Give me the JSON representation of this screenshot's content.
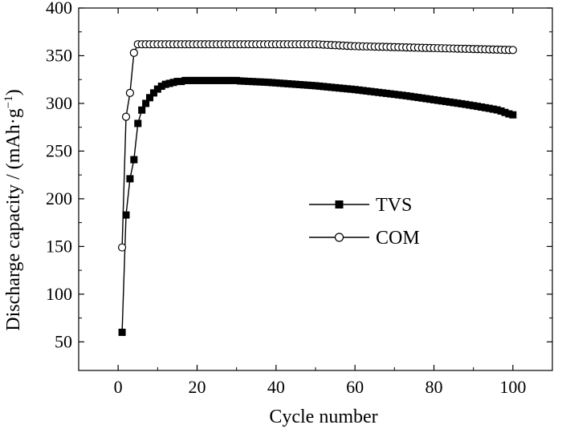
{
  "chart_data": {
    "type": "line",
    "xlabel": "Cycle number",
    "ylabel": {
      "main": "Discharge capacity / (mAh·g",
      "sup": "−1",
      "close": ")"
    },
    "xlim": [
      -10,
      110
    ],
    "ylim": [
      20,
      400
    ],
    "x_ticks": [
      0,
      20,
      40,
      60,
      80,
      100
    ],
    "y_ticks": [
      50,
      100,
      150,
      200,
      250,
      300,
      350,
      400
    ],
    "grid": false,
    "legend_position": "center-right",
    "series": [
      {
        "name": "TVS",
        "marker": "filled-square",
        "color": "#000000",
        "x": [
          1,
          2,
          3,
          4,
          5,
          6,
          7,
          8,
          9,
          10,
          11,
          12,
          13,
          14,
          15,
          16,
          17,
          18,
          19,
          20,
          21,
          22,
          23,
          24,
          25,
          26,
          27,
          28,
          29,
          30,
          31,
          32,
          33,
          34,
          35,
          36,
          37,
          38,
          39,
          40,
          41,
          42,
          43,
          44,
          45,
          46,
          47,
          48,
          49,
          50,
          51,
          52,
          53,
          54,
          55,
          56,
          57,
          58,
          59,
          60,
          61,
          62,
          63,
          64,
          65,
          66,
          67,
          68,
          69,
          70,
          71,
          72,
          73,
          74,
          75,
          76,
          77,
          78,
          79,
          80,
          81,
          82,
          83,
          84,
          85,
          86,
          87,
          88,
          89,
          90,
          91,
          92,
          93,
          94,
          95,
          96,
          97,
          98,
          99,
          100
        ],
        "y": [
          60,
          183,
          221,
          241,
          279,
          293,
          300,
          306,
          311,
          315,
          318,
          320,
          321,
          322,
          323,
          323,
          324,
          324,
          324,
          324,
          324,
          324,
          324,
          324,
          324,
          324,
          324,
          324,
          324,
          324,
          323.5,
          323.3,
          323.1,
          322.9,
          322.7,
          322.5,
          322.3,
          322.1,
          321.8,
          321.5,
          321.2,
          320.9,
          320.6,
          320.3,
          320,
          319.7,
          319.4,
          319.1,
          318.8,
          318.5,
          318.1,
          317.7,
          317.3,
          316.9,
          316.5,
          316.1,
          315.7,
          315.3,
          314.9,
          314.5,
          314,
          313.5,
          313,
          312.5,
          312,
          311.5,
          311,
          310.5,
          310,
          309.5,
          309,
          308.5,
          308,
          307.4,
          306.8,
          306.2,
          305.6,
          305,
          304.4,
          303.8,
          303.2,
          302.6,
          302,
          301.4,
          300.8,
          300.2,
          299.6,
          299,
          298.3,
          297.6,
          296.9,
          296.2,
          295.5,
          294.8,
          294,
          293.2,
          292,
          290.5,
          289,
          288
        ]
      },
      {
        "name": "COM",
        "marker": "open-circle",
        "color": "#000000",
        "x": [
          1,
          2,
          3,
          4,
          5,
          6,
          7,
          8,
          9,
          10,
          11,
          12,
          13,
          14,
          15,
          16,
          17,
          18,
          19,
          20,
          21,
          22,
          23,
          24,
          25,
          26,
          27,
          28,
          29,
          30,
          31,
          32,
          33,
          34,
          35,
          36,
          37,
          38,
          39,
          40,
          41,
          42,
          43,
          44,
          45,
          46,
          47,
          48,
          49,
          50,
          51,
          52,
          53,
          54,
          55,
          56,
          57,
          58,
          59,
          60,
          61,
          62,
          63,
          64,
          65,
          66,
          67,
          68,
          69,
          70,
          71,
          72,
          73,
          74,
          75,
          76,
          77,
          78,
          79,
          80,
          81,
          82,
          83,
          84,
          85,
          86,
          87,
          88,
          89,
          90,
          91,
          92,
          93,
          94,
          95,
          96,
          97,
          98,
          99,
          100
        ],
        "y": [
          149,
          286,
          311,
          353,
          362,
          362,
          362,
          362,
          362,
          362,
          362,
          362,
          362,
          362,
          362,
          362,
          362,
          362,
          362,
          362,
          362,
          362,
          362,
          362,
          362,
          362,
          362,
          362,
          362,
          362,
          362,
          362,
          362,
          362,
          362,
          362,
          362,
          362,
          362,
          362,
          362,
          362,
          362,
          362,
          362,
          362,
          362,
          362,
          362,
          362,
          361.8,
          361.6,
          361.4,
          361.2,
          361,
          360.8,
          360.6,
          360.4,
          360.2,
          360,
          359.9,
          359.8,
          359.7,
          359.6,
          359.5,
          359.4,
          359.3,
          359.2,
          359.1,
          359,
          358.9,
          358.8,
          358.7,
          358.6,
          358.5,
          358.4,
          358.3,
          358.2,
          358.1,
          358,
          357.9,
          357.8,
          357.7,
          357.6,
          357.5,
          357.4,
          357.3,
          357.2,
          357.1,
          357,
          356.9,
          356.8,
          356.7,
          356.6,
          356.5,
          356.4,
          356.3,
          356.2,
          356.1,
          356
        ]
      }
    ]
  }
}
